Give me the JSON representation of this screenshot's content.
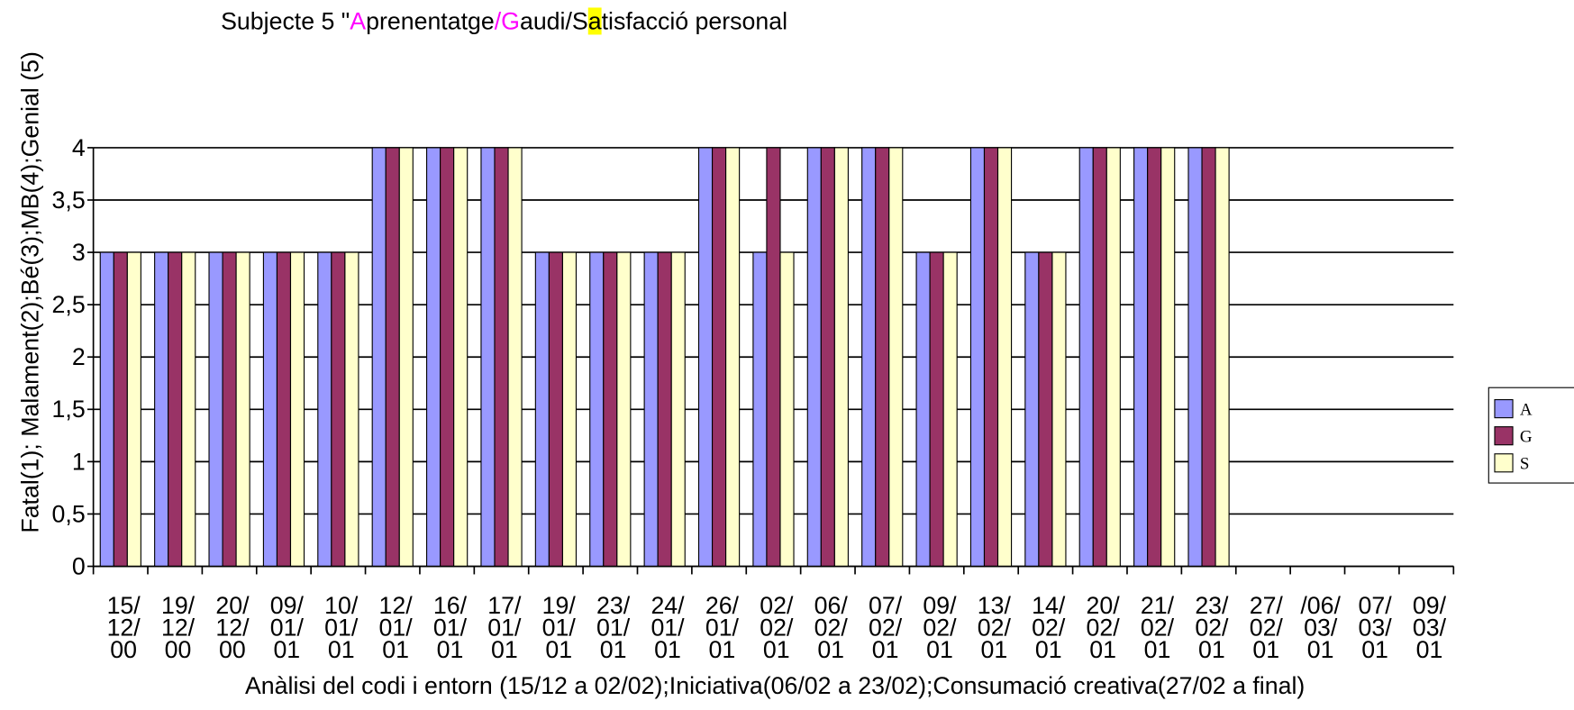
{
  "chart_data": {
    "type": "bar",
    "title": [
      {
        "text": "Subjecte 5  \""
      },
      {
        "text": "A",
        "color": "#ff00ff"
      },
      {
        "text": "prenentatge"
      },
      {
        "text": "/G",
        "color": "#ff00ff"
      },
      {
        "text": "audi/"
      },
      {
        "text": "S",
        "highlight": "#ffff00"
      },
      {
        "text": "atisfacció personal"
      }
    ],
    "y_label": "Fatal(1); Malament(2);Bé(3);MB(4);Genial (5)",
    "x_label": "Anàlisi  del codi i entorn (15/12 a 02/02);Iniciativa(06/02 a 23/02);Consumació creativa(27/02  a final)",
    "categories": [
      "15/\n12/\n00",
      "19/\n12/\n00",
      "20/\n12/\n00",
      "09/\n01/\n01",
      "10/\n01/\n01",
      "12/\n01/\n01",
      "16/\n01/\n01",
      "17/\n01/\n01",
      "19/\n01/\n01",
      "23/\n01/\n01",
      "24/\n01/\n01",
      "26/\n01/\n01",
      "02/\n02/\n01",
      "06/\n02/\n01",
      "07/\n02/\n01",
      "09/\n02/\n01",
      "13/\n02/\n01",
      "14/\n02/\n01",
      "20/\n02/\n01",
      "21/\n02/\n01",
      "23/\n02/\n01",
      "27/\n02/\n01",
      "/06/\n03/\n01",
      "07/\n03/\n01",
      "09/\n03/\n01"
    ],
    "series": [
      {
        "name": "A",
        "color": "#9999ff",
        "values": [
          3,
          3,
          3,
          3,
          3,
          4,
          4,
          4,
          3,
          3,
          3,
          4,
          3,
          4,
          4,
          3,
          4,
          3,
          4,
          4,
          4,
          0,
          0,
          0,
          0
        ]
      },
      {
        "name": "G",
        "color": "#993366",
        "values": [
          3,
          3,
          3,
          3,
          3,
          4,
          4,
          4,
          3,
          3,
          3,
          4,
          4,
          4,
          4,
          3,
          4,
          3,
          4,
          4,
          4,
          0,
          0,
          0,
          0
        ]
      },
      {
        "name": "S",
        "color": "#ffffcc",
        "values": [
          3,
          3,
          3,
          3,
          3,
          4,
          4,
          4,
          3,
          3,
          3,
          4,
          3,
          4,
          4,
          3,
          4,
          3,
          4,
          4,
          4,
          0,
          0,
          0,
          0
        ]
      }
    ],
    "ylim": [
      0,
      4
    ],
    "yticks": [
      0,
      {
        "value": 0.5,
        "label": "0,5"
      },
      1,
      {
        "value": 1.5,
        "label": "1,5"
      },
      2,
      {
        "value": 2.5,
        "label": "2,5"
      },
      3,
      {
        "value": 3.5,
        "label": "3,5"
      },
      4
    ],
    "grid": true,
    "legend": "right"
  }
}
